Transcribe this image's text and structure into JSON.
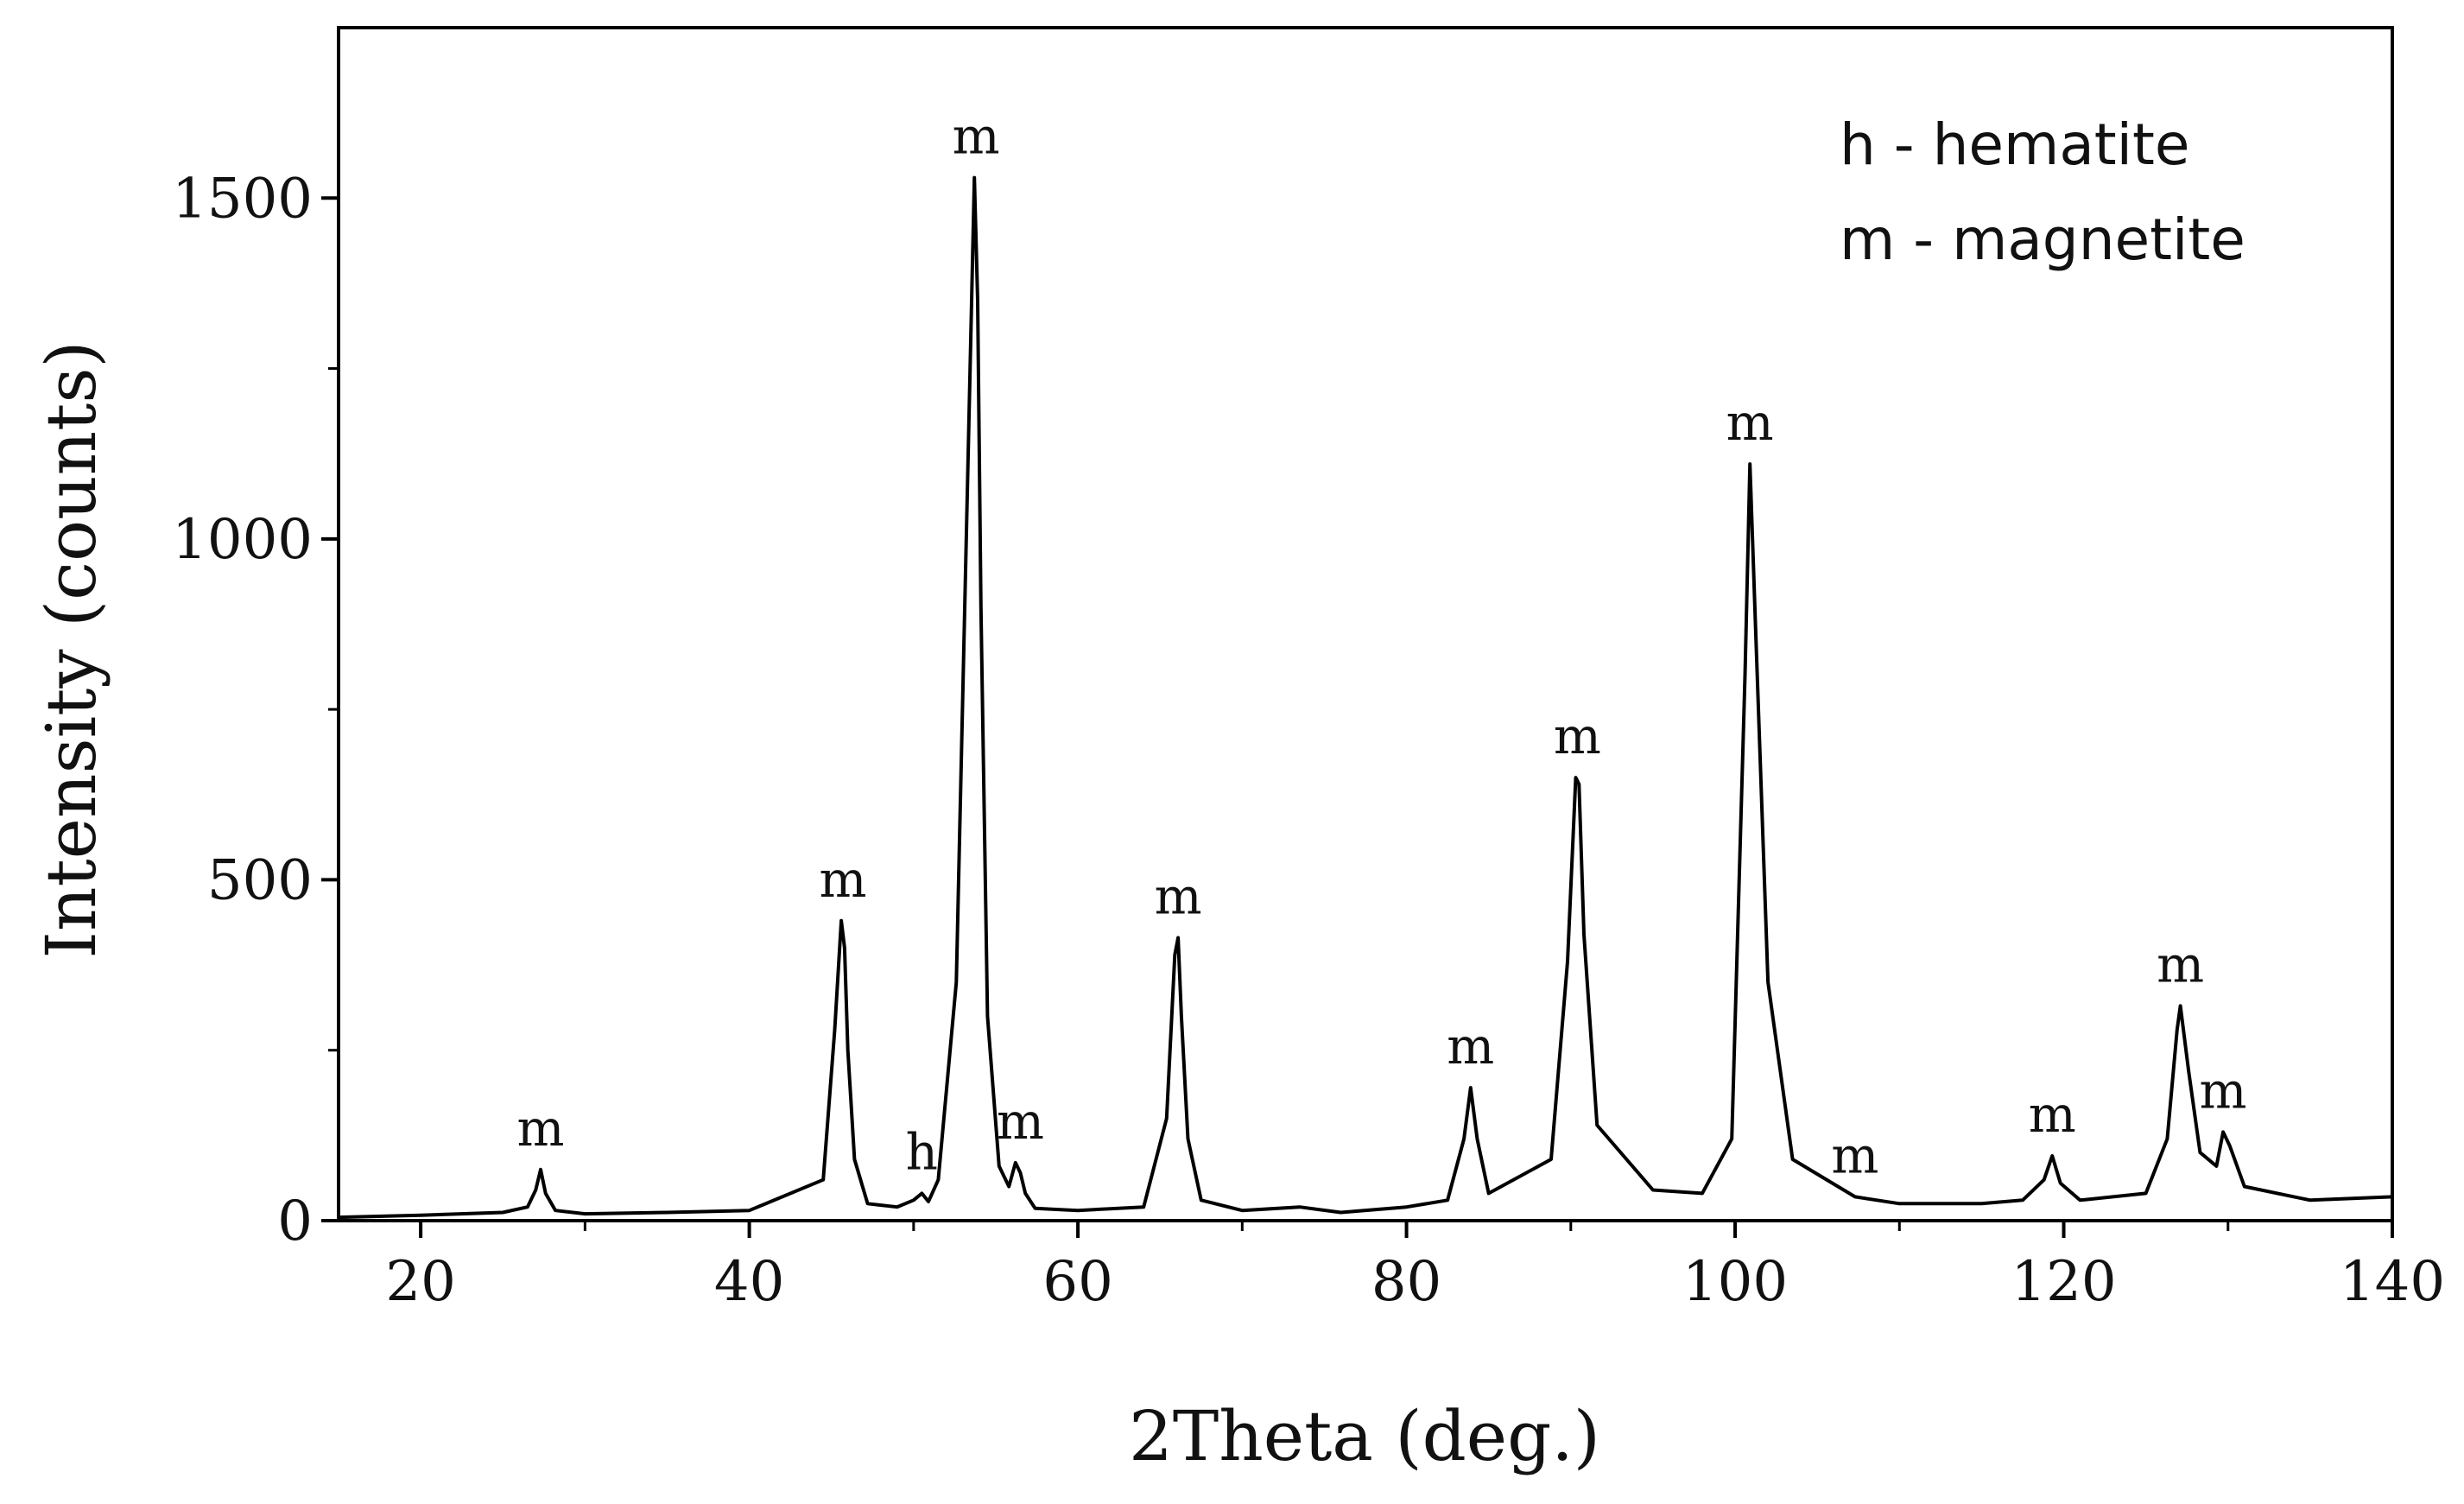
{
  "chart_data": {
    "type": "line",
    "xlabel": "2Theta (deg.)",
    "ylabel": "Intensity (counts)",
    "xlim": [
      15,
      140
    ],
    "ylim": [
      0,
      1750
    ],
    "xticks": [
      20,
      40,
      60,
      80,
      100,
      120,
      140
    ],
    "xtick_labels": [
      "20",
      "40",
      "60",
      "80",
      "100",
      "120",
      "140"
    ],
    "yticks": [
      0,
      500,
      1000,
      1500
    ],
    "ytick_labels": [
      "0",
      "500",
      "1000",
      "1500"
    ],
    "legend": {
      "position": "top-right",
      "entries": [
        "h - hematite",
        "m - magnetite"
      ]
    },
    "grid": false,
    "series": [
      {
        "x": [
          15,
          20,
          25,
          26.5,
          27.0,
          27.3,
          27.6,
          28.2,
          30,
          35,
          40,
          44.5,
          45.2,
          45.6,
          45.8,
          46.0,
          46.4,
          47.2,
          49,
          50.0,
          50.5,
          50.9,
          51.5,
          52.6,
          53.3,
          53.7,
          53.9,
          54.1,
          54.5,
          55.2,
          55.8,
          56.2,
          56.5,
          56.8,
          57.4,
          60,
          64,
          65.4,
          65.9,
          66.1,
          66.3,
          66.7,
          67.5,
          70,
          73.5,
          76,
          80,
          82.5,
          83.5,
          83.9,
          84.3,
          85.0,
          88.8,
          89.8,
          90.3,
          90.5,
          90.8,
          91.6,
          95,
          98,
          99.8,
          100.6,
          100.9,
          101.2,
          102.0,
          103.5,
          107.3,
          110,
          115,
          117.5,
          118.8,
          119.3,
          119.8,
          121,
          125,
          126.3,
          126.9,
          127.1,
          127.6,
          128.3,
          129.3,
          129.7,
          130.1,
          131.0,
          135,
          140
        ],
        "values": [
          5,
          8,
          12,
          20,
          45,
          75,
          40,
          15,
          10,
          12,
          15,
          60,
          280,
          440,
          400,
          250,
          90,
          25,
          20,
          30,
          40,
          28,
          60,
          350,
          1100,
          1530,
          1350,
          900,
          300,
          80,
          50,
          85,
          70,
          40,
          18,
          15,
          20,
          150,
          390,
          415,
          300,
          120,
          30,
          15,
          20,
          12,
          20,
          30,
          120,
          195,
          120,
          40,
          90,
          380,
          650,
          640,
          420,
          140,
          45,
          40,
          120,
          800,
          1110,
          900,
          350,
          90,
          35,
          25,
          25,
          30,
          60,
          95,
          55,
          30,
          40,
          120,
          280,
          315,
          220,
          100,
          80,
          130,
          110,
          50,
          30,
          35
        ]
      }
    ],
    "annotations": [
      {
        "text": "m",
        "x": 27.3,
        "y": 75
      },
      {
        "text": "m",
        "x": 45.7,
        "y": 440
      },
      {
        "text": "h",
        "x": 50.5,
        "y": 40
      },
      {
        "text": "m",
        "x": 56.5,
        "y": 85
      },
      {
        "text": "m",
        "x": 53.8,
        "y": 1530
      },
      {
        "text": "m",
        "x": 66.1,
        "y": 415
      },
      {
        "text": "m",
        "x": 83.9,
        "y": 195
      },
      {
        "text": "m",
        "x": 90.4,
        "y": 650
      },
      {
        "text": "m",
        "x": 100.9,
        "y": 1110
      },
      {
        "text": "m",
        "x": 107.3,
        "y": 35
      },
      {
        "text": "m",
        "x": 119.3,
        "y": 95
      },
      {
        "text": "m",
        "x": 127.1,
        "y": 315
      },
      {
        "text": "m",
        "x": 129.7,
        "y": 130
      }
    ],
    "line_color": "#000000"
  }
}
